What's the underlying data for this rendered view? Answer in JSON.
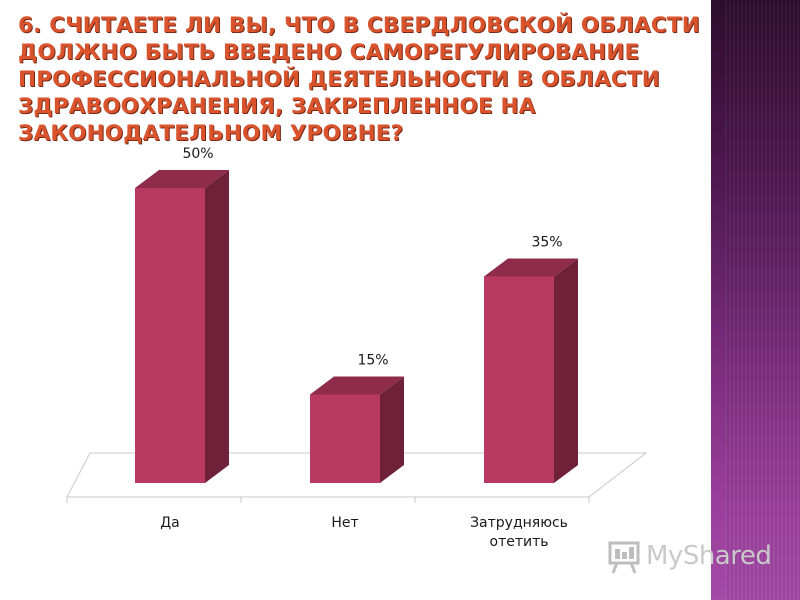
{
  "slide": {
    "title": "6. Считаете ли Вы, что в Свердловской области должно быть введено саморегулирование профессиональной деятельности в области здравоохранения,  закрепленное на законодательном уровне?"
  },
  "watermark": {
    "text": "MyShared",
    "icon": "presentation-board-icon"
  },
  "chart_data": {
    "type": "bar",
    "style": "3d-column",
    "categories": [
      "Да",
      "Нет",
      "Затрудняюсь отетить"
    ],
    "values": [
      50,
      15,
      35
    ],
    "data_labels": [
      "50%",
      "15%",
      "35%"
    ],
    "unit": "%",
    "title": "",
    "xlabel": "",
    "ylabel": "",
    "ylim": [
      0,
      50
    ],
    "grid": false,
    "legend": "none",
    "colors": {
      "front": "#b83a62",
      "side": "#6e2138",
      "top": "#8f2c4c",
      "floor": "#c8c8c8",
      "title": "#d9532c"
    }
  }
}
